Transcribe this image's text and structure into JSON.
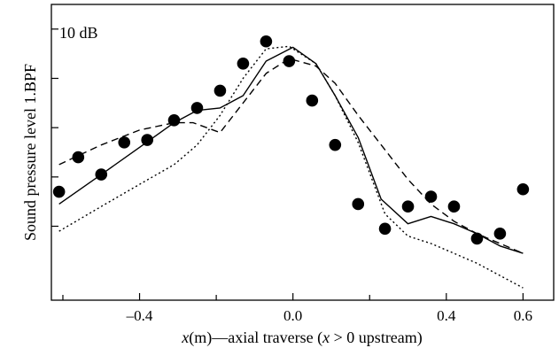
{
  "chart_data": {
    "type": "scatter",
    "title": "",
    "xlabel": "x(m)—axial traverse (x > 0 upstream)",
    "xlabel_parts": [
      {
        "text": "x",
        "italic": true
      },
      {
        "text": "(m)—axial traverse (",
        "italic": false
      },
      {
        "text": "x",
        "italic": true
      },
      {
        "text": " > 0 upstream)",
        "italic": false
      }
    ],
    "ylabel": "Sound pressure level 1.BPF",
    "annotation": "10 dB",
    "xlim": [
      -0.63,
      0.68
    ],
    "ylim": [
      -4.5,
      1.5
    ],
    "xticks": [
      -0.4,
      0.0,
      0.4,
      0.6
    ],
    "xtick_labels": [
      "–0.4",
      "0.0",
      "0.4",
      "0.6"
    ],
    "xticks_minor": [
      -0.6,
      -0.2,
      0.2
    ],
    "yticks": [
      -3,
      -2,
      -1,
      0,
      1
    ],
    "grid": false,
    "legend": "none",
    "series": [
      {
        "style": "markers",
        "x": [
          -0.61,
          -0.56,
          -0.5,
          -0.44,
          -0.38,
          -0.31,
          -0.25,
          -0.19,
          -0.13,
          -0.07,
          -0.01,
          0.05,
          0.11,
          0.17,
          0.24,
          0.3,
          0.36,
          0.42,
          0.48,
          0.54,
          0.6
        ],
        "y": [
          -2.3,
          -1.6,
          -1.95,
          -1.3,
          -1.25,
          -0.85,
          -0.6,
          -0.25,
          0.3,
          0.75,
          0.35,
          -0.45,
          -1.35,
          -2.55,
          -3.05,
          -2.6,
          -2.4,
          -2.6,
          -3.25,
          -3.15,
          -2.25
        ]
      },
      {
        "style": "solid",
        "x": [
          -0.61,
          -0.5,
          -0.4,
          -0.31,
          -0.25,
          -0.19,
          -0.13,
          -0.07,
          0.0,
          0.06,
          0.11,
          0.17,
          0.23,
          0.3,
          0.36,
          0.42,
          0.48,
          0.54,
          0.6
        ],
        "y": [
          -2.55,
          -1.95,
          -1.4,
          -0.9,
          -0.65,
          -0.6,
          -0.35,
          0.35,
          0.63,
          0.3,
          -0.35,
          -1.2,
          -2.45,
          -2.95,
          -2.8,
          -2.95,
          -3.15,
          -3.4,
          -3.55
        ]
      },
      {
        "style": "dashed",
        "x": [
          -0.61,
          -0.5,
          -0.4,
          -0.31,
          -0.26,
          -0.19,
          -0.13,
          -0.07,
          -0.01,
          0.06,
          0.11,
          0.17,
          0.24,
          0.3,
          0.36,
          0.42,
          0.48,
          0.54,
          0.6
        ],
        "y": [
          -1.75,
          -1.35,
          -1.05,
          -0.9,
          -0.9,
          -1.1,
          -0.5,
          0.1,
          0.4,
          0.25,
          -0.1,
          -0.75,
          -1.45,
          -2.05,
          -2.55,
          -2.9,
          -3.15,
          -3.35,
          -3.55
        ]
      },
      {
        "style": "dotted",
        "x": [
          -0.61,
          -0.5,
          -0.4,
          -0.31,
          -0.25,
          -0.19,
          -0.13,
          -0.07,
          -0.01,
          0.06,
          0.11,
          0.17,
          0.24,
          0.3,
          0.36,
          0.42,
          0.48,
          0.54,
          0.6
        ],
        "y": [
          -3.1,
          -2.6,
          -2.15,
          -1.75,
          -1.35,
          -0.75,
          0.0,
          0.6,
          0.65,
          0.3,
          -0.35,
          -1.3,
          -2.75,
          -3.2,
          -3.35,
          -3.55,
          -3.75,
          -4.0,
          -4.25
        ]
      }
    ]
  }
}
